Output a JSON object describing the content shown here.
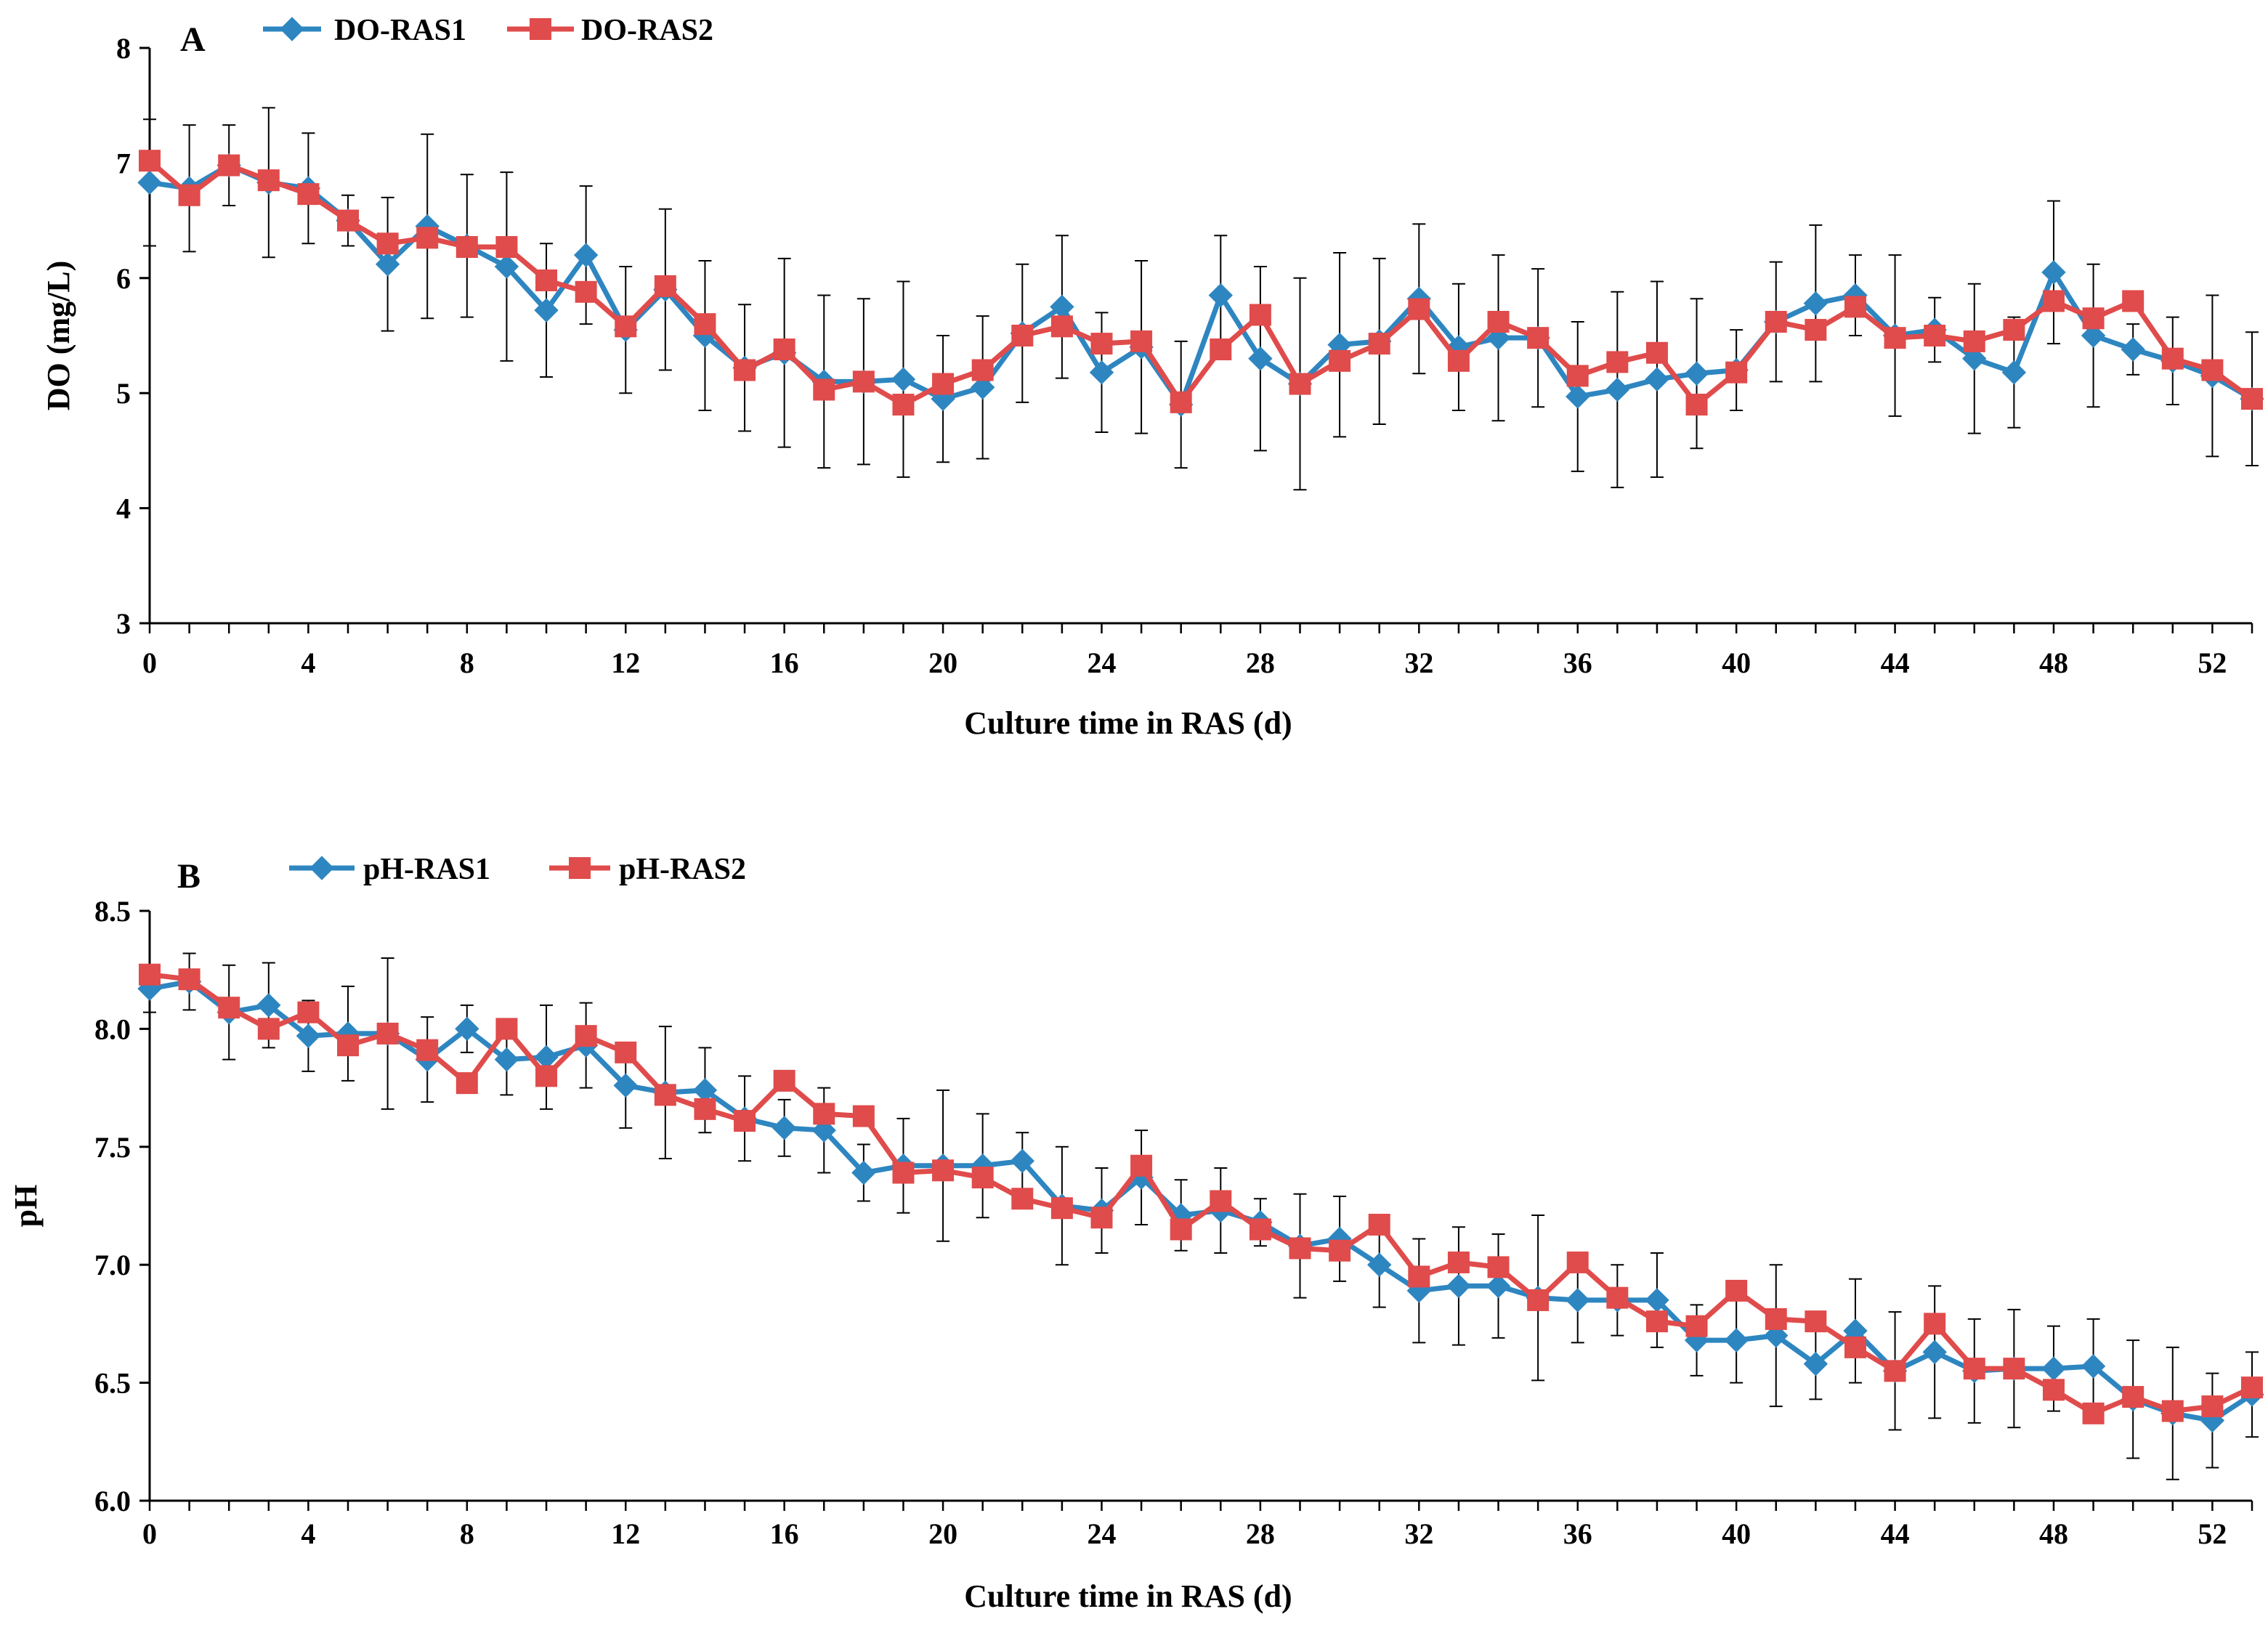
{
  "figure": {
    "panels": [
      {
        "id": "A",
        "letter": "A"
      },
      {
        "id": "B",
        "letter": "B"
      }
    ]
  },
  "chart_data": [
    {
      "type": "line",
      "panel": "A",
      "xlabel": "Culture time in RAS (d)",
      "ylabel": "DO (mg/L)",
      "xlim": [
        0,
        53
      ],
      "ylim": [
        3,
        8
      ],
      "xticks": [
        0,
        4,
        8,
        12,
        16,
        20,
        24,
        28,
        32,
        36,
        40,
        44,
        48,
        52
      ],
      "yticks": [
        3,
        4,
        5,
        6,
        7,
        8
      ],
      "ytick_labels": [
        "3",
        "4",
        "5",
        "6",
        "7",
        "8"
      ],
      "legend_position": "top-left",
      "x": [
        0,
        1,
        2,
        3,
        4,
        5,
        6,
        7,
        8,
        9,
        10,
        11,
        12,
        13,
        14,
        15,
        16,
        17,
        18,
        19,
        20,
        21,
        22,
        23,
        24,
        25,
        26,
        27,
        28,
        29,
        30,
        31,
        32,
        33,
        34,
        35,
        36,
        37,
        38,
        39,
        40,
        41,
        42,
        43,
        44,
        45,
        46,
        47,
        48,
        49,
        50,
        51,
        52,
        53
      ],
      "series": [
        {
          "name": "DO-RAS1",
          "color": "#2E86C1",
          "marker": "diamond",
          "values": [
            6.83,
            6.78,
            6.98,
            6.83,
            6.78,
            6.5,
            6.12,
            6.45,
            6.28,
            6.1,
            5.72,
            6.2,
            5.55,
            5.9,
            5.5,
            5.22,
            5.35,
            5.1,
            5.1,
            5.12,
            4.95,
            5.05,
            5.52,
            5.75,
            5.18,
            5.4,
            4.9,
            5.85,
            5.3,
            5.08,
            5.42,
            5.45,
            5.82,
            5.4,
            5.48,
            5.48,
            4.97,
            5.03,
            5.12,
            5.17,
            5.2,
            5.62,
            5.78,
            5.85,
            5.5,
            5.55,
            5.3,
            5.18,
            6.05,
            5.5,
            5.38,
            5.28,
            5.15,
            4.95
          ],
          "errors": [
            0.55,
            0.55,
            0.35,
            0.65,
            0.48,
            0.22,
            0.58,
            0.8,
            0.62,
            0.82,
            0.58,
            0.6,
            0.55,
            0.7,
            0.65,
            0.55,
            0.82,
            0.75,
            0.72,
            0.85,
            0.55,
            0.62,
            0.6,
            0.62,
            0.52,
            0.75,
            0.55,
            0.52,
            0.8,
            0.92,
            0.8,
            0.72,
            0.65,
            0.55,
            0.72,
            0.6,
            0.65,
            0.85,
            0.85,
            0.65,
            0.35,
            0.52,
            0.68,
            0.35,
            0.7,
            0.28,
            0.65,
            0.48,
            0.62,
            0.62,
            0.22,
            0.38,
            0.7,
            0.58
          ]
        },
        {
          "name": "DO-RAS2",
          "color": "#E04B4B",
          "marker": "square",
          "values": [
            7.02,
            6.72,
            6.98,
            6.85,
            6.73,
            6.5,
            6.3,
            6.35,
            6.27,
            6.27,
            5.98,
            5.88,
            5.58,
            5.93,
            5.6,
            5.2,
            5.38,
            5.03,
            5.1,
            4.9,
            5.08,
            5.2,
            5.5,
            5.58,
            5.43,
            5.45,
            4.92,
            5.38,
            5.68,
            5.08,
            5.28,
            5.43,
            5.73,
            5.28,
            5.62,
            5.48,
            5.15,
            5.27,
            5.35,
            4.9,
            5.18,
            5.62,
            5.55,
            5.75,
            5.48,
            5.5,
            5.45,
            5.55,
            5.8,
            5.65,
            5.8,
            5.3,
            5.2,
            4.95
          ]
        }
      ]
    },
    {
      "type": "line",
      "panel": "B",
      "xlabel": "Culture time in RAS (d)",
      "ylabel": "pH",
      "xlim": [
        0,
        53
      ],
      "ylim": [
        6.0,
        8.5
      ],
      "xticks": [
        0,
        4,
        8,
        12,
        16,
        20,
        24,
        28,
        32,
        36,
        40,
        44,
        48,
        52
      ],
      "yticks": [
        6.0,
        6.5,
        7.0,
        7.5,
        8.0,
        8.5
      ],
      "ytick_labels": [
        "6.0",
        "6.5",
        "7.0",
        "7.5",
        "8.0",
        "8.5"
      ],
      "legend_position": "top-left",
      "x": [
        0,
        1,
        2,
        3,
        4,
        5,
        6,
        7,
        8,
        9,
        10,
        11,
        12,
        13,
        14,
        15,
        16,
        17,
        18,
        19,
        20,
        21,
        22,
        23,
        24,
        25,
        26,
        27,
        28,
        29,
        30,
        31,
        32,
        33,
        34,
        35,
        36,
        37,
        38,
        39,
        40,
        41,
        42,
        43,
        44,
        45,
        46,
        47,
        48,
        49,
        50,
        51,
        52,
        53
      ],
      "series": [
        {
          "name": "pH-RAS1",
          "color": "#2E86C1",
          "marker": "diamond",
          "values": [
            8.17,
            8.2,
            8.07,
            8.1,
            7.97,
            7.98,
            7.98,
            7.87,
            8.0,
            7.87,
            7.88,
            7.93,
            7.76,
            7.73,
            7.74,
            7.62,
            7.58,
            7.57,
            7.39,
            7.42,
            7.42,
            7.42,
            7.44,
            7.25,
            7.23,
            7.37,
            7.21,
            7.23,
            7.18,
            7.08,
            7.11,
            7.0,
            6.89,
            6.91,
            6.91,
            6.86,
            6.85,
            6.85,
            6.85,
            6.68,
            6.68,
            6.7,
            6.58,
            6.72,
            6.55,
            6.63,
            6.55,
            6.56,
            6.56,
            6.57,
            6.43,
            6.37,
            6.34,
            6.45
          ],
          "errors": [
            0.1,
            0.12,
            0.2,
            0.18,
            0.15,
            0.2,
            0.32,
            0.18,
            0.1,
            0.15,
            0.22,
            0.18,
            0.18,
            0.28,
            0.18,
            0.18,
            0.12,
            0.18,
            0.12,
            0.2,
            0.32,
            0.22,
            0.12,
            0.25,
            0.18,
            0.2,
            0.15,
            0.18,
            0.1,
            0.22,
            0.18,
            0.18,
            0.22,
            0.25,
            0.22,
            0.35,
            0.18,
            0.15,
            0.2,
            0.15,
            0.18,
            0.3,
            0.15,
            0.22,
            0.25,
            0.28,
            0.22,
            0.25,
            0.18,
            0.2,
            0.25,
            0.28,
            0.2,
            0.18
          ]
        },
        {
          "name": "pH-RAS2",
          "color": "#E04B4B",
          "marker": "square",
          "values": [
            8.23,
            8.21,
            8.09,
            8.0,
            8.07,
            7.93,
            7.98,
            7.91,
            7.77,
            8.0,
            7.8,
            7.97,
            7.9,
            7.72,
            7.66,
            7.61,
            7.78,
            7.64,
            7.63,
            7.39,
            7.4,
            7.37,
            7.28,
            7.24,
            7.2,
            7.42,
            7.15,
            7.27,
            7.15,
            7.07,
            7.06,
            7.17,
            6.95,
            7.01,
            6.99,
            6.85,
            7.01,
            6.86,
            6.76,
            6.74,
            6.89,
            6.77,
            6.76,
            6.65,
            6.55,
            6.75,
            6.56,
            6.56,
            6.47,
            6.37,
            6.44,
            6.38,
            6.4,
            6.48
          ]
        }
      ]
    }
  ]
}
